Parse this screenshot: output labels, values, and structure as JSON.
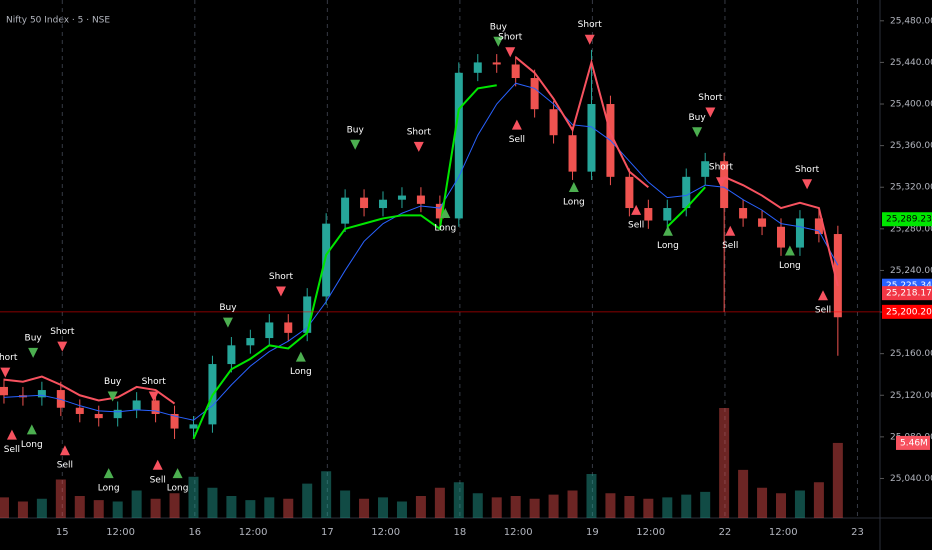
{
  "chart_data": {
    "type": "candlestick",
    "title": "Nifty 50 Index · 5 · NSE",
    "xlim": [
      -0.47,
      6.17
    ],
    "xticks": [
      {
        "value": 0,
        "label": "15"
      },
      {
        "value": 0.44,
        "label": "12:00"
      },
      {
        "value": 1,
        "label": "16"
      },
      {
        "value": 1.44,
        "label": "12:00"
      },
      {
        "value": 2,
        "label": "17"
      },
      {
        "value": 2.44,
        "label": "12:00"
      },
      {
        "value": 3,
        "label": "18"
      },
      {
        "value": 3.44,
        "label": "12:00"
      },
      {
        "value": 4,
        "label": "19"
      },
      {
        "value": 4.44,
        "label": "12:00"
      },
      {
        "value": 5,
        "label": "22"
      },
      {
        "value": 5.44,
        "label": "12:00"
      },
      {
        "value": 6,
        "label": "23"
      }
    ],
    "ylim": [
      25002,
      25500
    ],
    "yticks": [
      {
        "value": 25040,
        "label": "25,040.00"
      },
      {
        "value": 25080,
        "label": "25,080.00"
      },
      {
        "value": 25120,
        "label": "25,120.00"
      },
      {
        "value": 25160,
        "label": "25,160.00"
      },
      {
        "value": 25200,
        "label": "25,200.00"
      },
      {
        "value": 25240,
        "label": "25,240.00"
      },
      {
        "value": 25280,
        "label": "25,280.00"
      },
      {
        "value": 25320,
        "label": "25,320.00"
      },
      {
        "value": 25360,
        "label": "25,360.00"
      },
      {
        "value": 25400,
        "label": "25,400.00"
      },
      {
        "value": 25440,
        "label": "25,440.00"
      },
      {
        "value": 25480,
        "label": "25,480.00"
      }
    ],
    "x": [
      -0.44,
      -0.297,
      -0.154,
      -0.011,
      0.132,
      0.275,
      0.418,
      0.561,
      0.704,
      0.847,
      0.99,
      1.133,
      1.276,
      1.419,
      1.562,
      1.705,
      1.848,
      1.991,
      2.134,
      2.277,
      2.42,
      2.563,
      2.706,
      2.849,
      2.992,
      3.135,
      3.278,
      3.421,
      3.564,
      3.707,
      3.85,
      3.993,
      4.136,
      4.279,
      4.422,
      4.565,
      4.708,
      4.851,
      4.994,
      5.137,
      5.28,
      5.423,
      5.566,
      5.709,
      5.852
    ],
    "open": [
      25128,
      25120,
      25118,
      25125,
      25108,
      25102,
      25098,
      25106,
      25115,
      25102,
      25088,
      25092,
      25150,
      25168,
      25175,
      25190,
      25180,
      25215,
      25285,
      25310,
      25300,
      25308,
      25312,
      25304,
      25290,
      25430,
      25440,
      25438,
      25425,
      25395,
      25370,
      25335,
      25400,
      25330,
      25300,
      25288,
      25300,
      25330,
      25345,
      25300,
      25290,
      25282,
      25262,
      25290,
      25275
    ],
    "high": [
      25136,
      25128,
      25133,
      25133,
      25116,
      25110,
      25114,
      25123,
      25123,
      25110,
      25100,
      25158,
      25176,
      25183,
      25198,
      25198,
      25223,
      25295,
      25318,
      25318,
      25316,
      25320,
      25320,
      25312,
      25440,
      25448,
      25448,
      25446,
      25433,
      25403,
      25378,
      25452,
      25408,
      25338,
      25308,
      25308,
      25338,
      25353,
      25353,
      25308,
      25298,
      25290,
      25298,
      25298,
      25283
    ],
    "low": [
      25112,
      25110,
      25110,
      25100,
      25094,
      25090,
      25090,
      25098,
      25094,
      25078,
      25080,
      25084,
      25142,
      25160,
      25167,
      25172,
      25172,
      25207,
      25277,
      25292,
      25292,
      25300,
      25296,
      25282,
      25282,
      25422,
      25430,
      25417,
      25387,
      25362,
      25327,
      25327,
      25322,
      25292,
      25280,
      25280,
      25292,
      25322,
      25200,
      25282,
      25274,
      25254,
      25254,
      25267,
      25158
    ],
    "close": [
      25120,
      25118,
      25125,
      25108,
      25102,
      25098,
      25106,
      25115,
      25102,
      25088,
      25092,
      25150,
      25168,
      25175,
      25190,
      25180,
      25215,
      25285,
      25310,
      25300,
      25308,
      25312,
      25304,
      25290,
      25430,
      25440,
      25438,
      25425,
      25395,
      25370,
      25335,
      25400,
      25330,
      25300,
      25288,
      25300,
      25330,
      25345,
      25300,
      25290,
      25282,
      25262,
      25290,
      25275,
      25195
    ],
    "volume": [
      1.5,
      1.2,
      1.4,
      2.8,
      1.6,
      1.3,
      1.2,
      2.0,
      1.4,
      1.8,
      3.0,
      2.2,
      1.6,
      1.3,
      1.5,
      1.4,
      2.5,
      3.4,
      2.0,
      1.4,
      1.5,
      1.2,
      1.6,
      2.2,
      2.6,
      1.8,
      1.5,
      1.6,
      1.4,
      1.7,
      2.0,
      3.2,
      1.8,
      1.6,
      1.4,
      1.5,
      1.7,
      1.9,
      8.0,
      3.5,
      2.2,
      1.8,
      2.0,
      2.6,
      5.46
    ],
    "up_color": "#26a69a",
    "down_color": "#ef5350",
    "series": [
      {
        "color": "#2962ff",
        "values": [
          25118,
          25119,
          25120,
          25116,
          25110,
          25105,
          25104,
          25106,
          25105,
          25100,
          25096,
          25110,
          25130,
          25148,
          25162,
          25172,
          25185,
          25210,
          25240,
          25268,
          25285,
          25295,
          25302,
          25300,
          25330,
          25370,
          25400,
          25420,
          25415,
          25400,
          25380,
          25378,
          25365,
          25345,
          25325,
          25310,
          25312,
          25322,
          25320,
          25308,
          25298,
          25285,
          25282,
          25278,
          25245
        ]
      },
      {
        "color": "#00e600",
        "values": [
          null,
          null,
          null,
          null,
          null,
          null,
          null,
          null,
          null,
          null,
          25078,
          25120,
          25145,
          25155,
          25168,
          25165,
          25180,
          25255,
          25280,
          25285,
          25290,
          25293,
          25293,
          25280,
          25395,
          25415,
          25418,
          null,
          null,
          null,
          null,
          null,
          null,
          null,
          null,
          25282,
          25300,
          25320,
          null,
          null,
          null,
          null,
          null,
          null,
          null
        ]
      },
      {
        "color": "#f7525f",
        "values": [
          25135,
          25133,
          25138,
          25130,
          25120,
          25115,
          25118,
          25128,
          25125,
          25112,
          null,
          null,
          null,
          null,
          null,
          null,
          null,
          null,
          null,
          null,
          null,
          null,
          null,
          null,
          null,
          null,
          null,
          25445,
          25430,
          25405,
          25375,
          25440,
          25372,
          25335,
          25320,
          null,
          null,
          null,
          25330,
          25322,
          25312,
          25300,
          25305,
          25300,
          25225
        ]
      }
    ],
    "signals": [
      {
        "label": "Short",
        "x": -0.43,
        "price": 25137
      },
      {
        "label": "Sell",
        "x": -0.38,
        "price": 25087
      },
      {
        "label": "Buy",
        "x": -0.22,
        "price": 25156
      },
      {
        "label": "Long",
        "x": -0.23,
        "price": 25092
      },
      {
        "label": "Short",
        "x": 0,
        "price": 25162
      },
      {
        "label": "Sell",
        "x": 0.02,
        "price": 25072
      },
      {
        "label": "Buy",
        "x": 0.38,
        "price": 25114
      },
      {
        "label": "Long",
        "x": 0.35,
        "price": 25050
      },
      {
        "label": "Short",
        "x": 0.69,
        "price": 25114
      },
      {
        "label": "Sell",
        "x": 0.72,
        "price": 25058
      },
      {
        "label": "Long",
        "x": 0.87,
        "price": 25050
      },
      {
        "label": "Buy",
        "x": 1.25,
        "price": 25185
      },
      {
        "label": "Short",
        "x": 1.65,
        "price": 25215
      },
      {
        "label": "Long",
        "x": 1.8,
        "price": 25162
      },
      {
        "label": "Buy",
        "x": 2.21,
        "price": 25356
      },
      {
        "label": "Short",
        "x": 2.69,
        "price": 25354
      },
      {
        "label": "Long",
        "x": 2.89,
        "price": 25300
      },
      {
        "label": "Buy",
        "x": 3.29,
        "price": 25455
      },
      {
        "label": "Short",
        "x": 3.38,
        "price": 25445
      },
      {
        "label": "Sell",
        "x": 3.43,
        "price": 25385
      },
      {
        "label": "Short",
        "x": 3.98,
        "price": 25457
      },
      {
        "label": "Long",
        "x": 3.86,
        "price": 25325
      },
      {
        "label": "Sell",
        "x": 4.33,
        "price": 25303
      },
      {
        "label": "Long",
        "x": 4.57,
        "price": 25283
      },
      {
        "label": "Buy",
        "x": 4.79,
        "price": 25368
      },
      {
        "label": "Short",
        "x": 4.89,
        "price": 25387
      },
      {
        "label": "Short",
        "x": 4.97,
        "price": 25320
      },
      {
        "label": "Sell",
        "x": 5.04,
        "price": 25283
      },
      {
        "label": "Long",
        "x": 5.49,
        "price": 25264
      },
      {
        "label": "Short",
        "x": 5.62,
        "price": 25318
      },
      {
        "label": "Sell",
        "x": 5.74,
        "price": 25221
      }
    ],
    "price_tags": [
      {
        "value": 25289.23,
        "label": "25,289.23",
        "color": "#00e600"
      },
      {
        "value": 25225.34,
        "label": "25,225.34",
        "color": "#2962ff"
      },
      {
        "value": 25218.17,
        "label": "25,218.17",
        "color": "#f23645"
      },
      {
        "value": 25200.2,
        "label": "25,200.20",
        "color": "#ff0000"
      }
    ],
    "volume_tag": {
      "value": 5.46,
      "label": "5.46M",
      "color": "#f7525f"
    }
  }
}
